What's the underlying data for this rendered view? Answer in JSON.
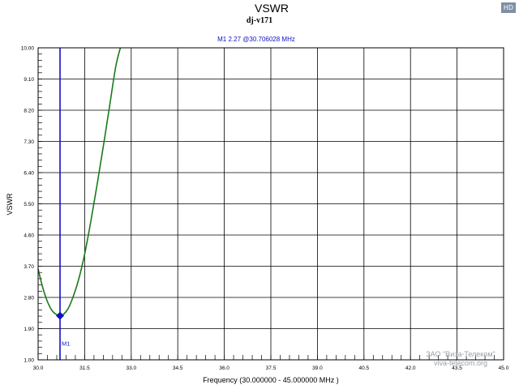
{
  "badge": "HD",
  "watermark": {
    "line1": "ЗАО \"Виза-Телеком\"",
    "line2": "viva-telecom.org"
  },
  "chart_data": {
    "type": "line",
    "title": "VSWR",
    "subtitle": "dj-v171",
    "xlabel": "Frequency (30.000000 - 45.000000 MHz )",
    "ylabel": "VSWR",
    "xlim": [
      30.0,
      45.0
    ],
    "ylim": [
      1.0,
      10.0
    ],
    "x_ticks": [
      "30.0",
      "31.5",
      "33.0",
      "34.5",
      "36.0",
      "37.5",
      "39.0",
      "40.5",
      "42.0",
      "43.5",
      "45.0"
    ],
    "y_ticks": [
      "1.00",
      "1.90",
      "2.80",
      "3.70",
      "4.60",
      "5.50",
      "6.40",
      "7.30",
      "8.20",
      "9.10",
      "10.00"
    ],
    "grid": true,
    "series": [
      {
        "color": "#1a7a1a",
        "x": [
          30.0,
          30.15,
          30.3,
          30.45,
          30.6,
          30.706,
          30.8,
          30.95,
          31.1,
          31.3,
          31.5,
          31.7,
          31.9,
          32.1,
          32.3,
          32.5,
          32.65
        ],
        "y": [
          3.62,
          3.08,
          2.68,
          2.42,
          2.3,
          2.27,
          2.3,
          2.45,
          2.75,
          3.3,
          4.05,
          5.0,
          6.05,
          7.15,
          8.3,
          9.45,
          10.0
        ]
      }
    ],
    "marker": {
      "name": "M1",
      "x": 30.706,
      "y": 2.27,
      "color": "#1010c8",
      "readout": "M1   2.27 @30.706028 MHz"
    }
  }
}
